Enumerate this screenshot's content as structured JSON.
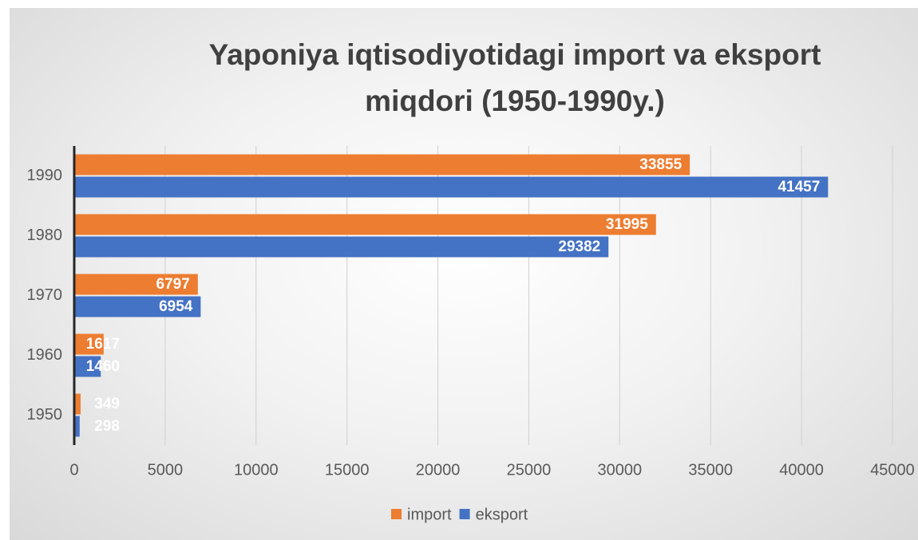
{
  "chart_data": {
    "type": "barh",
    "title": "Yaponiya iqtisodiyotidagi import va eksport miqdori (1950-1990y.)",
    "categories": [
      "1950",
      "1960",
      "1970",
      "1980",
      "1990"
    ],
    "series": [
      {
        "name": "import",
        "color": "#ed7d31",
        "values": [
          349,
          1617,
          6797,
          31995,
          33855
        ]
      },
      {
        "name": "eksport",
        "color": "#4472c4",
        "values": [
          298,
          1460,
          6954,
          29382,
          41457
        ]
      }
    ],
    "xlim": [
      0,
      45000
    ],
    "xticks": [
      0,
      5000,
      10000,
      15000,
      20000,
      25000,
      30000,
      35000,
      40000,
      45000
    ],
    "grid": true,
    "legend": "bottom"
  }
}
